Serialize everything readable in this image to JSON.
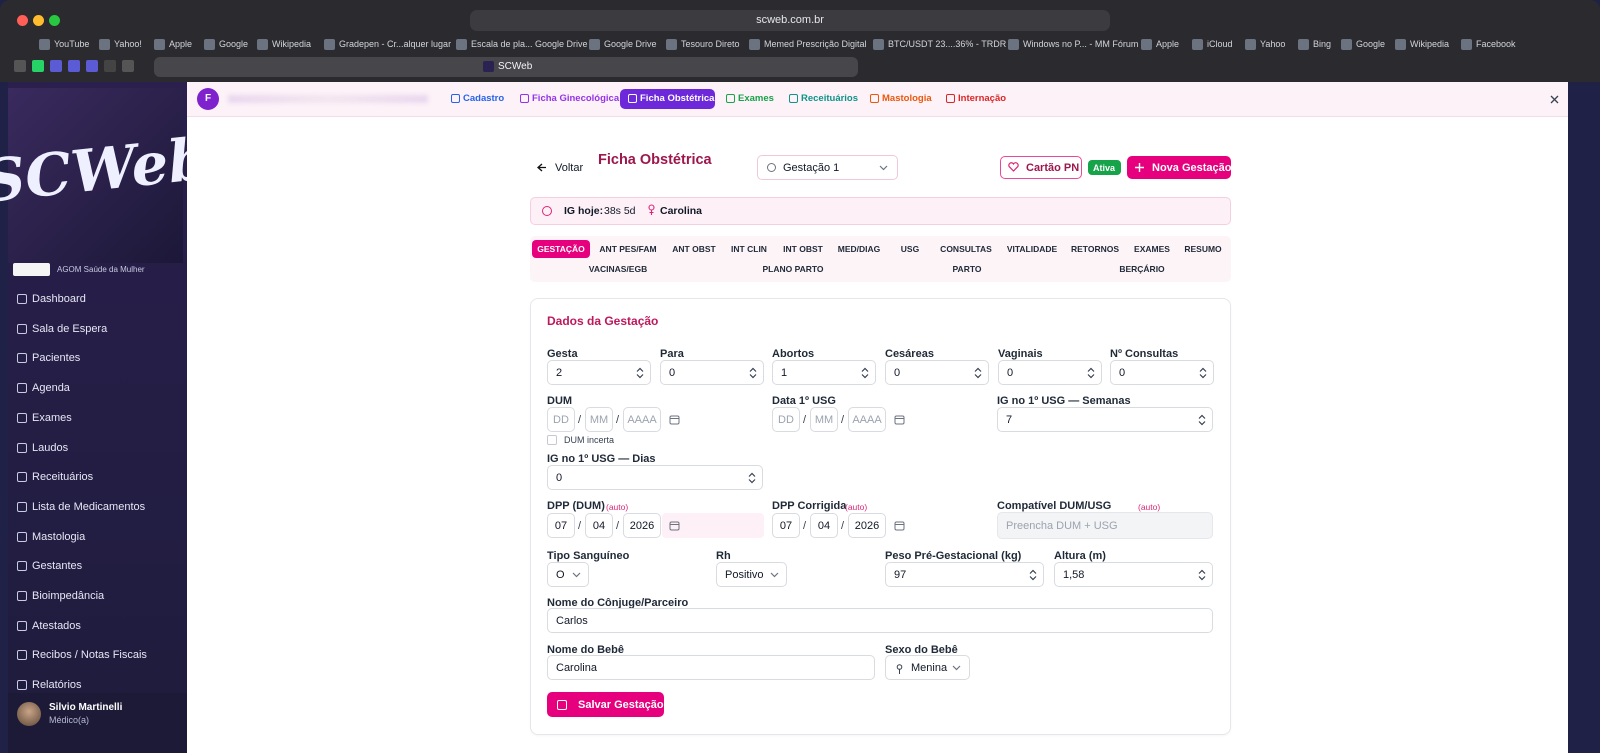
{
  "browser": {
    "url": "scweb.com.br",
    "tab": "SCWeb",
    "bookmarks": [
      "YouTube",
      "Yahoo!",
      "Apple",
      "Google",
      "Wikipedia",
      "Gradepen - Cr...alquer lugar",
      "Escala de pla... Google Drive",
      "Google Drive",
      "Tesouro Direto",
      "Memed Prescrição Digital",
      "BTC/USDT 23....36% - TRDR",
      "Windows no P... - MM Fórum",
      "Apple",
      "iCloud",
      "Yahoo",
      "Bing",
      "Google",
      "Wikipedia",
      "Facebook"
    ]
  },
  "sidebar": {
    "logo": "SCWeb",
    "clinic": "AGOM Saúde da Mulher",
    "menu": [
      "Dashboard",
      "Sala de Espera",
      "Pacientes",
      "Agenda",
      "Exames",
      "Laudos",
      "Receituários",
      "Lista de Medicamentos",
      "Mastologia",
      "Gestantes",
      "Bioimpedância",
      "Atestados",
      "Recibos / Notas Fiscais",
      "Relatórios"
    ],
    "user": {
      "name": "Silvio Martinelli",
      "role": "Médico(a)"
    }
  },
  "topbar": {
    "avatar": "F",
    "tabs": [
      "Cadastro",
      "Ficha Ginecológica",
      "Ficha Obstétrica",
      "Exames",
      "Receituários",
      "Mastologia",
      "Internação"
    ]
  },
  "header": {
    "back": "Voltar",
    "title": "Ficha Obstétrica",
    "pregnancy": "Gestação 1",
    "card": "Cartão PN",
    "status": "Ativa",
    "new": "Nova Gestação"
  },
  "info": {
    "label": "IG hoje:",
    "value": "38s 5d",
    "patient": "Carolina"
  },
  "section_tabs": [
    "GESTAÇÃO",
    "ANT PES/FAM",
    "ANT OBST",
    "INT CLIN",
    "INT OBST",
    "MED/DIAG",
    "USG",
    "CONSULTAS",
    "VITALIDADE",
    "RETORNOS",
    "EXAMES",
    "RESUMO",
    "VACINAS/EGB",
    "PLANO PARTO",
    "PARTO",
    "BERÇÁRIO"
  ],
  "form": {
    "title": "Dados da Gestação",
    "separator": "/",
    "counts": [
      {
        "label": "Gesta",
        "value": "2"
      },
      {
        "label": "Para",
        "value": "0"
      },
      {
        "label": "Abortos",
        "value": "1"
      },
      {
        "label": "Cesáreas",
        "value": "0"
      },
      {
        "label": "Vaginais",
        "value": "0"
      },
      {
        "label": "Nº Consultas",
        "value": "0"
      }
    ],
    "dum": {
      "label": "DUM",
      "placeholders": [
        "DD",
        "MM",
        "AAAA"
      ],
      "uncertain": "DUM incerta"
    },
    "usg_date": {
      "label": "Data 1º USG",
      "placeholders": [
        "DD",
        "MM",
        "AAAA"
      ]
    },
    "usg_weeks": {
      "label": "IG no 1º USG — Semanas",
      "value": "7"
    },
    "usg_days": {
      "label": "IG no 1º USG — Dias",
      "value": "0"
    },
    "dpp": {
      "label": "DPP (DUM)",
      "tag": "(auto)",
      "parts": [
        "07",
        "04",
        "2026"
      ]
    },
    "dpp_corrected": {
      "label": "DPP Corrigida",
      "tag": "(auto)",
      "parts": [
        "07",
        "04",
        "2026"
      ]
    },
    "compatible": {
      "label": "Compatível DUM/USG",
      "tag": "(auto)",
      "placeholder": "Preencha DUM + USG"
    },
    "blood_type": {
      "label": "Tipo Sanguíneo",
      "value": "O"
    },
    "rh": {
      "label": "Rh",
      "value": "Positivo"
    },
    "weight": {
      "label": "Peso Pré-Gestacional (kg)",
      "value": "97"
    },
    "height": {
      "label": "Altura (m)",
      "value": "1,58"
    },
    "partner": {
      "label": "Nome do Cônjuge/Parceiro",
      "value": "Carlos"
    },
    "baby_name": {
      "label": "Nome do Bebê",
      "value": "Carolina"
    },
    "baby_sex": {
      "label": "Sexo do Bebê",
      "value": "Menina"
    },
    "save": "Salvar Gestação"
  }
}
